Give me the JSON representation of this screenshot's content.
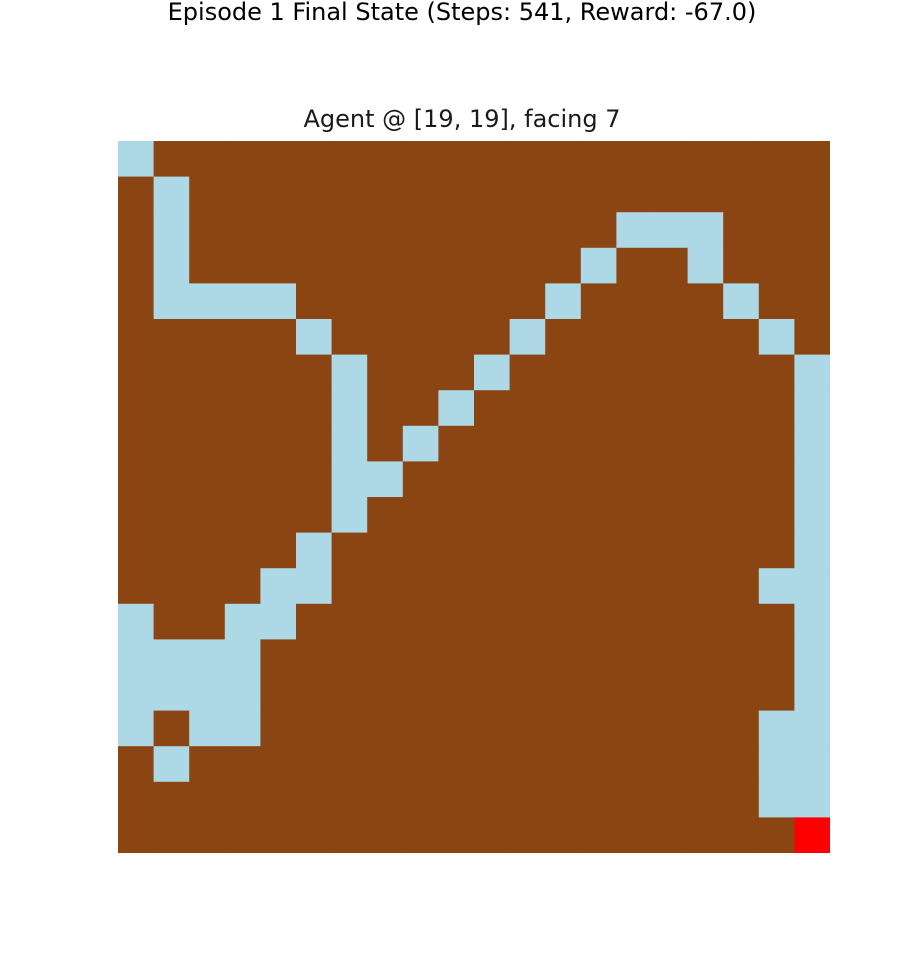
{
  "figure": {
    "suptitle": "Episode 1 Final State (Steps: 541, Reward: -67.0)",
    "subplot_title": "Agent @ [19, 19], facing 7"
  },
  "grid": {
    "rows": 20,
    "cols": 20,
    "agent": {
      "row": 19,
      "col": 19,
      "facing": 7
    },
    "colors": {
      "dirt": "#8B4513",
      "dug": "#ADD8E6",
      "agent": "#FF0000"
    },
    "dug_cells": [
      [
        0,
        0
      ],
      [
        1,
        1
      ],
      [
        2,
        1
      ],
      [
        2,
        14
      ],
      [
        2,
        15
      ],
      [
        2,
        16
      ],
      [
        3,
        1
      ],
      [
        3,
        13
      ],
      [
        3,
        16
      ],
      [
        4,
        1
      ],
      [
        4,
        2
      ],
      [
        4,
        3
      ],
      [
        4,
        4
      ],
      [
        4,
        12
      ],
      [
        4,
        17
      ],
      [
        5,
        5
      ],
      [
        5,
        11
      ],
      [
        5,
        18
      ],
      [
        6,
        6
      ],
      [
        6,
        10
      ],
      [
        6,
        19
      ],
      [
        7,
        6
      ],
      [
        7,
        9
      ],
      [
        7,
        19
      ],
      [
        8,
        6
      ],
      [
        8,
        8
      ],
      [
        8,
        19
      ],
      [
        9,
        6
      ],
      [
        9,
        7
      ],
      [
        9,
        19
      ],
      [
        10,
        6
      ],
      [
        10,
        19
      ],
      [
        11,
        5
      ],
      [
        11,
        19
      ],
      [
        12,
        4
      ],
      [
        12,
        5
      ],
      [
        12,
        18
      ],
      [
        12,
        19
      ],
      [
        13,
        0
      ],
      [
        13,
        3
      ],
      [
        13,
        4
      ],
      [
        13,
        19
      ],
      [
        14,
        0
      ],
      [
        14,
        1
      ],
      [
        14,
        2
      ],
      [
        14,
        3
      ],
      [
        14,
        19
      ],
      [
        15,
        0
      ],
      [
        15,
        1
      ],
      [
        15,
        2
      ],
      [
        15,
        3
      ],
      [
        15,
        19
      ],
      [
        16,
        0
      ],
      [
        16,
        2
      ],
      [
        16,
        3
      ],
      [
        16,
        18
      ],
      [
        16,
        19
      ],
      [
        17,
        1
      ],
      [
        17,
        18
      ],
      [
        17,
        19
      ],
      [
        18,
        18
      ],
      [
        18,
        19
      ]
    ]
  }
}
